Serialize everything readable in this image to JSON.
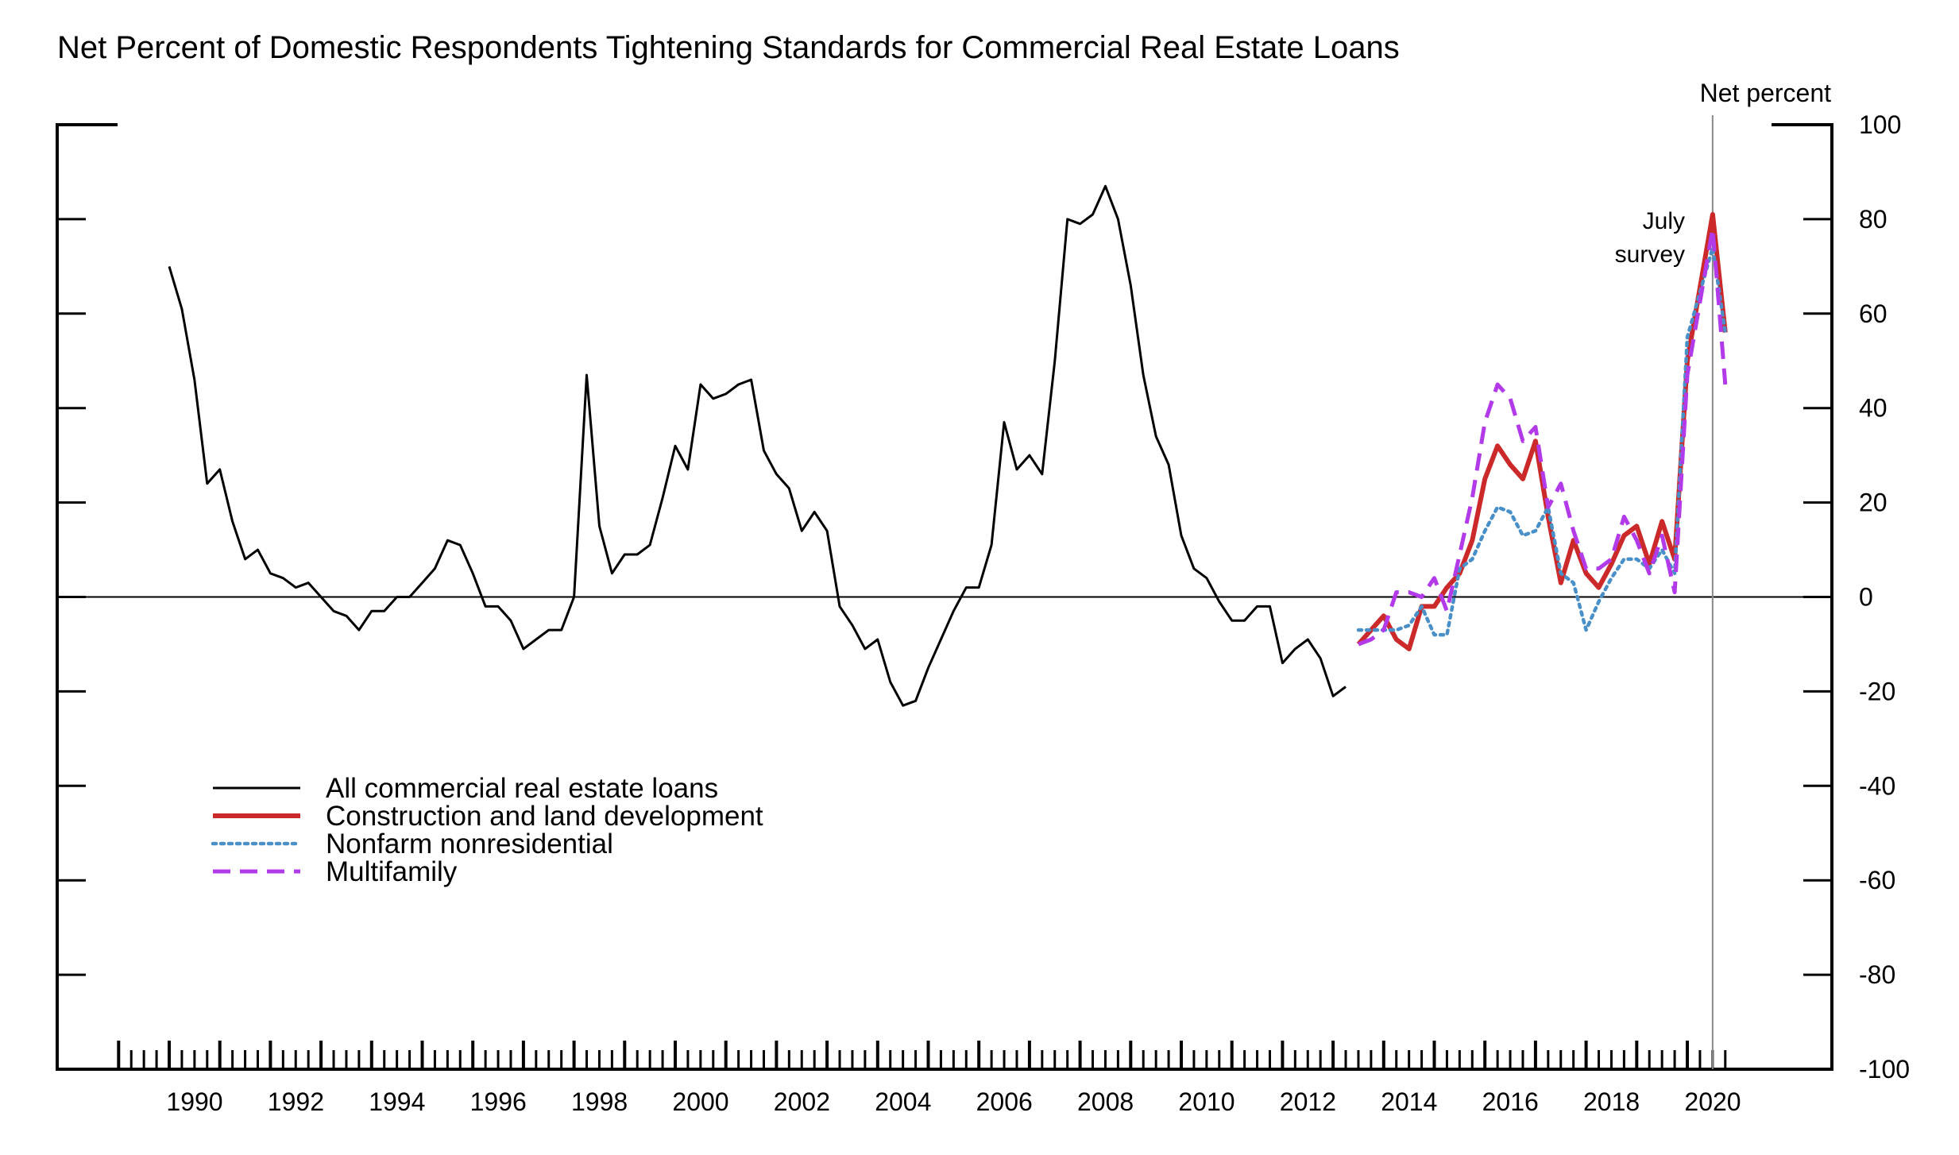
{
  "chart_data": {
    "type": "line",
    "title": "Net Percent of Domestic Respondents Tightening Standards for Commercial Real Estate Loans",
    "ylabel": "Net percent",
    "xlabel": "",
    "ylim": [
      -100,
      100
    ],
    "xlim": [
      1988.5,
      2022.8
    ],
    "yticks": [
      100,
      80,
      60,
      40,
      20,
      0,
      -20,
      -40,
      -60,
      -80,
      -100
    ],
    "xticks": [
      "1990",
      "1992",
      "1994",
      "1996",
      "1998",
      "2000",
      "2002",
      "2004",
      "2006",
      "2008",
      "2010",
      "2012",
      "2014",
      "2016",
      "2018",
      "2020"
    ],
    "legend_position": "lower-left",
    "reference_line_x": 2020.5,
    "annotation": [
      "July",
      "survey"
    ],
    "series": [
      {
        "name": "All commercial real estate loans",
        "color": "#000000",
        "style": "solid",
        "points": [
          [
            1990.0,
            70
          ],
          [
            1990.25,
            61
          ],
          [
            1990.5,
            46
          ],
          [
            1990.75,
            24
          ],
          [
            1991.0,
            27
          ],
          [
            1991.25,
            16
          ],
          [
            1991.5,
            8
          ],
          [
            1991.75,
            10
          ],
          [
            1992.0,
            5
          ],
          [
            1992.25,
            4
          ],
          [
            1992.5,
            2
          ],
          [
            1992.75,
            3
          ],
          [
            1993.0,
            0
          ],
          [
            1993.25,
            -3
          ],
          [
            1993.5,
            -4
          ],
          [
            1993.75,
            -7
          ],
          [
            1994.0,
            -3
          ],
          [
            1994.25,
            -3
          ],
          [
            1994.5,
            0
          ],
          [
            1994.75,
            0
          ],
          [
            1995.0,
            3
          ],
          [
            1995.25,
            6
          ],
          [
            1995.5,
            12
          ],
          [
            1995.75,
            11
          ],
          [
            1996.0,
            5
          ],
          [
            1996.25,
            -2
          ],
          [
            1996.5,
            -2
          ],
          [
            1996.75,
            -5
          ],
          [
            1997.0,
            -11
          ],
          [
            1997.25,
            -9
          ],
          [
            1997.5,
            -7
          ],
          [
            1997.75,
            -7
          ],
          [
            1998.0,
            0
          ],
          [
            1998.25,
            47
          ],
          [
            1998.5,
            15
          ],
          [
            1998.75,
            5
          ],
          [
            1999.0,
            9
          ],
          [
            1999.25,
            9
          ],
          [
            1999.5,
            11
          ],
          [
            1999.75,
            21
          ],
          [
            2000.0,
            32
          ],
          [
            2000.25,
            27
          ],
          [
            2000.5,
            45
          ],
          [
            2000.75,
            42
          ],
          [
            2001.0,
            43
          ],
          [
            2001.25,
            45
          ],
          [
            2001.5,
            46
          ],
          [
            2001.75,
            31
          ],
          [
            2002.0,
            26
          ],
          [
            2002.25,
            23
          ],
          [
            2002.5,
            14
          ],
          [
            2002.75,
            18
          ],
          [
            2003.0,
            14
          ],
          [
            2003.25,
            -2
          ],
          [
            2003.5,
            -6
          ],
          [
            2003.75,
            -11
          ],
          [
            2004.0,
            -9
          ],
          [
            2004.25,
            -18
          ],
          [
            2004.5,
            -23
          ],
          [
            2004.75,
            -22
          ],
          [
            2005.0,
            -15
          ],
          [
            2005.25,
            -9
          ],
          [
            2005.5,
            -3
          ],
          [
            2005.75,
            2
          ],
          [
            2006.0,
            2
          ],
          [
            2006.25,
            11
          ],
          [
            2006.5,
            37
          ],
          [
            2006.75,
            27
          ],
          [
            2007.0,
            30
          ],
          [
            2007.25,
            26
          ],
          [
            2007.5,
            50
          ],
          [
            2007.75,
            80
          ],
          [
            2008.0,
            79
          ],
          [
            2008.25,
            81
          ],
          [
            2008.5,
            87
          ],
          [
            2008.75,
            80
          ],
          [
            2009.0,
            66
          ],
          [
            2009.25,
            47
          ],
          [
            2009.5,
            34
          ],
          [
            2009.75,
            28
          ],
          [
            2010.0,
            13
          ],
          [
            2010.25,
            6
          ],
          [
            2010.5,
            4
          ],
          [
            2010.75,
            -1
          ],
          [
            2011.0,
            -5
          ],
          [
            2011.25,
            -5
          ],
          [
            2011.5,
            -2
          ],
          [
            2011.75,
            -2
          ],
          [
            2012.0,
            -14
          ],
          [
            2012.25,
            -11
          ],
          [
            2012.5,
            -9
          ],
          [
            2012.75,
            -13
          ],
          [
            2013.0,
            -21
          ],
          [
            2013.25,
            -19
          ]
        ]
      },
      {
        "name": "Construction and land development",
        "color": "#cc2a2a",
        "style": "solid",
        "points": [
          [
            2013.5,
            -10
          ],
          [
            2013.75,
            -7
          ],
          [
            2014.0,
            -4
          ],
          [
            2014.25,
            -9
          ],
          [
            2014.5,
            -11
          ],
          [
            2014.75,
            -2
          ],
          [
            2015.0,
            -2
          ],
          [
            2015.25,
            2
          ],
          [
            2015.5,
            5
          ],
          [
            2015.75,
            12
          ],
          [
            2016.0,
            25
          ],
          [
            2016.25,
            32
          ],
          [
            2016.5,
            28
          ],
          [
            2016.75,
            25
          ],
          [
            2017.0,
            33
          ],
          [
            2017.25,
            17
          ],
          [
            2017.5,
            3
          ],
          [
            2017.75,
            12
          ],
          [
            2018.0,
            5
          ],
          [
            2018.25,
            2
          ],
          [
            2018.5,
            7
          ],
          [
            2018.75,
            13
          ],
          [
            2019.0,
            15
          ],
          [
            2019.25,
            7
          ],
          [
            2019.5,
            16
          ],
          [
            2019.75,
            8
          ],
          [
            2020.0,
            50
          ],
          [
            2020.5,
            81
          ],
          [
            2020.75,
            56
          ]
        ]
      },
      {
        "name": "Nonfarm nonresidential",
        "color": "#4a90c8",
        "style": "dotted",
        "points": [
          [
            2013.5,
            -7
          ],
          [
            2013.75,
            -7
          ],
          [
            2014.0,
            -7
          ],
          [
            2014.25,
            -7
          ],
          [
            2014.5,
            -6
          ],
          [
            2014.75,
            -2
          ],
          [
            2015.0,
            -8
          ],
          [
            2015.25,
            -8
          ],
          [
            2015.5,
            6
          ],
          [
            2015.75,
            8
          ],
          [
            2016.0,
            14
          ],
          [
            2016.25,
            19
          ],
          [
            2016.5,
            18
          ],
          [
            2016.75,
            13
          ],
          [
            2017.0,
            14
          ],
          [
            2017.25,
            19
          ],
          [
            2017.5,
            5
          ],
          [
            2017.75,
            3
          ],
          [
            2018.0,
            -7
          ],
          [
            2018.25,
            -1
          ],
          [
            2018.5,
            4
          ],
          [
            2018.75,
            8
          ],
          [
            2019.0,
            8
          ],
          [
            2019.25,
            6
          ],
          [
            2019.5,
            10
          ],
          [
            2019.75,
            5
          ],
          [
            2020.0,
            55
          ],
          [
            2020.5,
            74
          ],
          [
            2020.75,
            56
          ]
        ]
      },
      {
        "name": "Multifamily",
        "color": "#b23ae8",
        "style": "dashed",
        "points": [
          [
            2013.5,
            -10
          ],
          [
            2013.75,
            -9
          ],
          [
            2014.0,
            -7
          ],
          [
            2014.25,
            1
          ],
          [
            2014.5,
            1
          ],
          [
            2014.75,
            0
          ],
          [
            2015.0,
            4
          ],
          [
            2015.25,
            -3
          ],
          [
            2015.5,
            9
          ],
          [
            2015.75,
            21
          ],
          [
            2016.0,
            37
          ],
          [
            2016.25,
            45
          ],
          [
            2016.5,
            42
          ],
          [
            2016.75,
            33
          ],
          [
            2017.0,
            36
          ],
          [
            2017.25,
            19
          ],
          [
            2017.5,
            24
          ],
          [
            2017.75,
            14
          ],
          [
            2018.0,
            6
          ],
          [
            2018.25,
            6
          ],
          [
            2018.5,
            8
          ],
          [
            2018.75,
            17
          ],
          [
            2019.0,
            12
          ],
          [
            2019.25,
            5
          ],
          [
            2019.5,
            13
          ],
          [
            2019.75,
            1
          ],
          [
            2020.0,
            47
          ],
          [
            2020.5,
            78
          ],
          [
            2020.75,
            45
          ]
        ]
      }
    ]
  }
}
